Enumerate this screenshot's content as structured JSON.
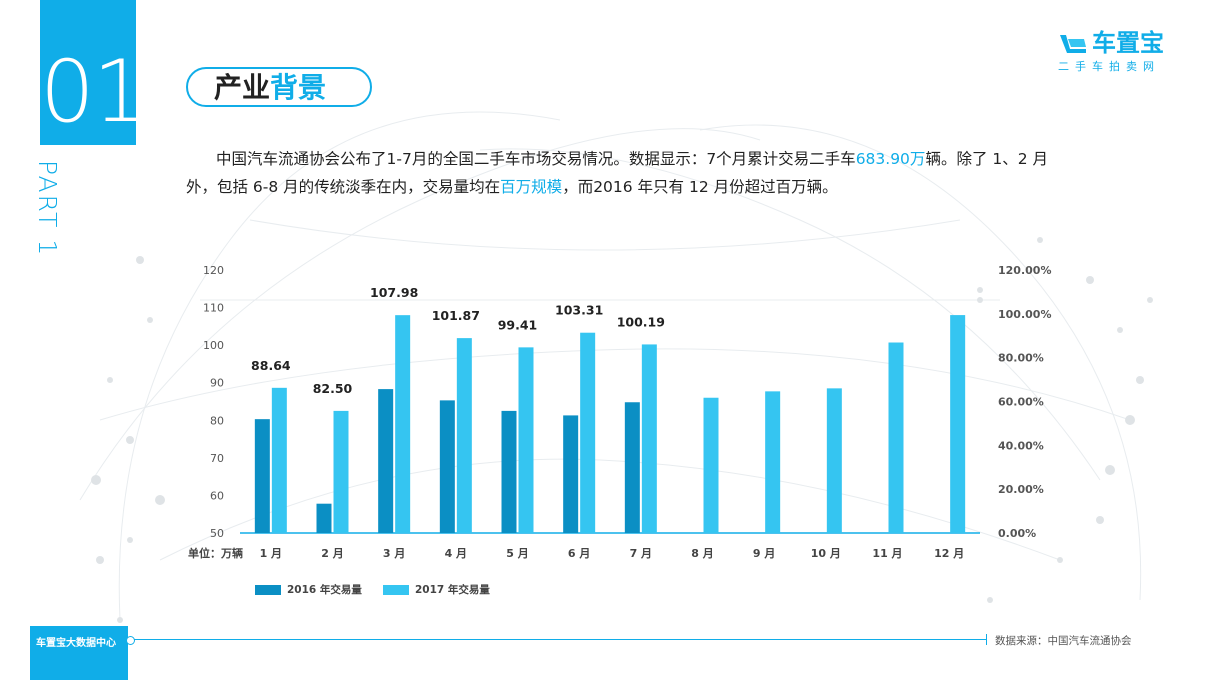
{
  "section": {
    "number": "01",
    "part_label": "PART 1"
  },
  "title": {
    "part1": "产业",
    "part2": "背景"
  },
  "logo": {
    "name": "车置宝",
    "subtitle": "二手车拍卖网"
  },
  "paragraph": {
    "t1": "中国汽车流通协会公布了1-7月的全国二手车市场交易情况。数据显示：7个月累计交易二手车",
    "h1": "683.90万",
    "t2": "辆。除了 1、2 月外，包括 6-8 月的传统淡季在内，交易量均在",
    "h2": "百万规模",
    "t3": "，而2016 年只有 12 月份超过百万辆。"
  },
  "footer": {
    "left": "车置宝大数据中心",
    "source": "数据来源：中国汽车流通协会"
  },
  "colors": {
    "accent": "#10ade8",
    "s2016": "#0b8fc4",
    "s2017": "#35c5f1"
  },
  "chart_data": {
    "type": "bar",
    "categories": [
      "1 月",
      "2 月",
      "3 月",
      "4 月",
      "5 月",
      "6 月",
      "7 月",
      "8 月",
      "9 月",
      "10 月",
      "11 月",
      "12 月"
    ],
    "series": [
      {
        "name": "2016 年交易量",
        "values": [
          80.3,
          57.8,
          88.3,
          85.3,
          82.5,
          81.3,
          84.8,
          null,
          null,
          null,
          null,
          null
        ]
      },
      {
        "name": "2017 年交易量",
        "values": [
          88.64,
          82.5,
          107.98,
          101.87,
          99.41,
          103.31,
          100.19,
          86.0,
          87.7,
          88.5,
          100.7,
          108.0
        ]
      }
    ],
    "data_labels": [
      "88.64",
      "82.50",
      "107.98",
      "101.87",
      "99.41",
      "103.31",
      "100.19",
      "",
      "",
      "",
      "",
      ""
    ],
    "y_ticks": [
      "50",
      "60",
      "70",
      "80",
      "90",
      "100",
      "110",
      "120"
    ],
    "y2_ticks": [
      "0.00%",
      "20.00%",
      "40.00%",
      "60.00%",
      "80.00%",
      "100.00%",
      "120.00%"
    ],
    "unit_label": "单位：万辆",
    "ylim": [
      50,
      120
    ],
    "y2lim": [
      0,
      120
    ],
    "legend_position": "bottom-left"
  }
}
